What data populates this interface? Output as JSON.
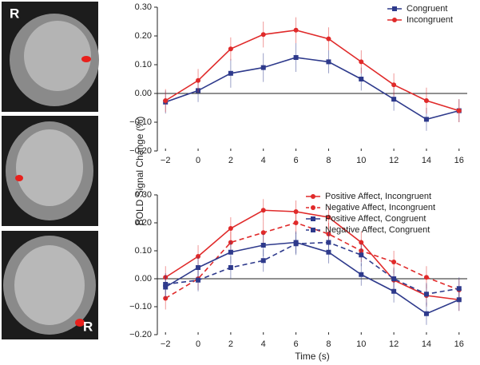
{
  "image_labels": [
    "R",
    "R"
  ],
  "chart_data": [
    {
      "type": "line",
      "ylabel": "BOLD Signal Change (%)",
      "x": [
        -2,
        0,
        2,
        4,
        6,
        8,
        10,
        12,
        14,
        16
      ],
      "xlim": [
        -2.5,
        16.5
      ],
      "xticks": [
        {
          "value": -2,
          "label": "−2"
        },
        0,
        2,
        4,
        6,
        8,
        10,
        12,
        14,
        16
      ],
      "ylim": [
        -0.2,
        0.3
      ],
      "yticks": [
        {
          "value": 0.3,
          "label": "0.30"
        },
        {
          "value": 0.2,
          "label": "0.20"
        },
        {
          "value": 0.1,
          "label": "0.10"
        },
        {
          "value": 0,
          "label": "0.00"
        },
        {
          "value": -0.1,
          "label": "−0.10"
        },
        {
          "value": -0.2,
          "label": "−0.20"
        }
      ],
      "legend": "upper right",
      "series": [
        {
          "name": "Congruent",
          "color": "#2e3a8c",
          "linestyle": "solid",
          "marker": "square",
          "values": [
            -0.03,
            0.01,
            0.07,
            0.09,
            0.125,
            0.11,
            0.05,
            -0.02,
            -0.09,
            -0.06
          ],
          "errors": [
            0.04,
            0.04,
            0.05,
            0.05,
            0.05,
            0.04,
            0.04,
            0.04,
            0.04,
            0.04
          ]
        },
        {
          "name": "Incongruent",
          "color": "#e02a2a",
          "linestyle": "solid",
          "marker": "circle",
          "values": [
            -0.025,
            0.045,
            0.155,
            0.205,
            0.22,
            0.19,
            0.11,
            0.03,
            -0.025,
            -0.06
          ],
          "errors": [
            0.04,
            0.04,
            0.04,
            0.045,
            0.045,
            0.04,
            0.04,
            0.04,
            0.045,
            0.04
          ]
        }
      ]
    },
    {
      "type": "line",
      "xlabel": "Time (s)",
      "x": [
        -2,
        0,
        2,
        4,
        6,
        8,
        10,
        12,
        14,
        16
      ],
      "xlim": [
        -2.5,
        16.5
      ],
      "xticks": [
        {
          "value": -2,
          "label": "−2"
        },
        0,
        2,
        4,
        6,
        8,
        10,
        12,
        14,
        16
      ],
      "ylim": [
        -0.2,
        0.3
      ],
      "yticks": [
        {
          "value": 0.3,
          "label": "0.30"
        },
        {
          "value": 0.2,
          "label": "0.20"
        },
        {
          "value": 0.1,
          "label": "0.10"
        },
        {
          "value": 0,
          "label": "0.00"
        },
        {
          "value": -0.1,
          "label": "−0.10"
        },
        {
          "value": -0.2,
          "label": "−0.20"
        }
      ],
      "legend": "upper right",
      "series": [
        {
          "name": "Positive Affect, Incongruent",
          "color": "#e02a2a",
          "linestyle": "solid",
          "marker": "circle",
          "values": [
            0.005,
            0.08,
            0.18,
            0.245,
            0.24,
            0.22,
            0.13,
            -0.005,
            -0.06,
            -0.075
          ],
          "errors": [
            0.04,
            0.04,
            0.04,
            0.04,
            0.04,
            0.04,
            0.04,
            0.04,
            0.04,
            0.04
          ]
        },
        {
          "name": "Negative Affect, Incongruent",
          "color": "#e02a2a",
          "linestyle": "dashed",
          "marker": "circle",
          "values": [
            -0.07,
            0.0,
            0.13,
            0.165,
            0.2,
            0.16,
            0.1,
            0.06,
            0.005,
            -0.04
          ],
          "errors": [
            0.04,
            0.04,
            0.04,
            0.04,
            0.04,
            0.04,
            0.04,
            0.04,
            0.04,
            0.04
          ]
        },
        {
          "name": "Positive Affect, Congruent",
          "color": "#2e3a8c",
          "linestyle": "solid",
          "marker": "square",
          "values": [
            -0.03,
            0.04,
            0.095,
            0.12,
            0.13,
            0.095,
            0.015,
            -0.045,
            -0.125,
            -0.075
          ],
          "errors": [
            0.04,
            0.04,
            0.04,
            0.04,
            0.04,
            0.04,
            0.04,
            0.04,
            0.04,
            0.04
          ]
        },
        {
          "name": "Negative Affect, Congruent",
          "color": "#2e3a8c",
          "linestyle": "dashed",
          "marker": "square",
          "values": [
            -0.02,
            -0.005,
            0.04,
            0.065,
            0.125,
            0.13,
            0.085,
            0.0,
            -0.055,
            -0.035
          ],
          "errors": [
            0.04,
            0.04,
            0.04,
            0.04,
            0.04,
            0.04,
            0.04,
            0.04,
            0.04,
            0.04
          ]
        }
      ]
    }
  ]
}
